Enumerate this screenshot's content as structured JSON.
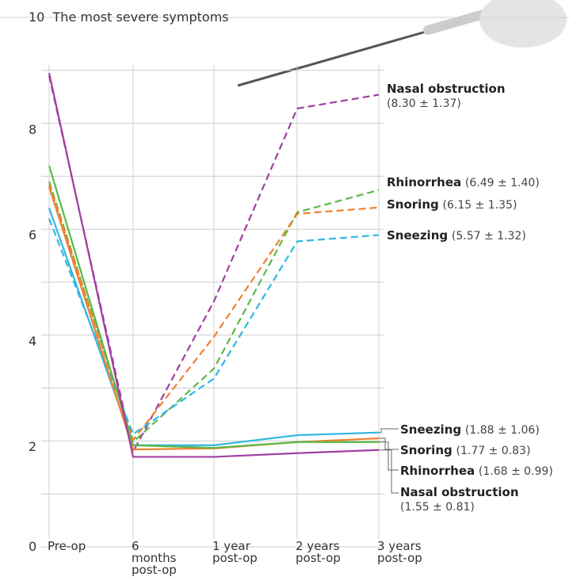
{
  "chart_data": {
    "type": "line",
    "title": "The most severe symptoms",
    "categories": [
      "Pre-op",
      "6 months post-op",
      "1 year post-op",
      "2 years post-op",
      "3 years post-op"
    ],
    "ylim": [
      0,
      10
    ],
    "yticks": [
      0,
      2,
      4,
      6,
      8,
      10
    ],
    "minor_yticks": [
      1,
      3,
      5,
      7,
      9
    ],
    "grid": true,
    "series": [
      {
        "name": "Nasal obstruction",
        "stat": "(8.30 ± 1.37)",
        "color": "#a040a0",
        "dash": true,
        "values": [
          8.9,
          1.8,
          4.64,
          8.28,
          8.54
        ]
      },
      {
        "name": "Rhinorrhea",
        "stat": "(6.49 ± 1.40)",
        "color": "#5cb848",
        "dash": true,
        "values": [
          6.9,
          1.98,
          3.37,
          6.32,
          6.74
        ]
      },
      {
        "name": "Snoring",
        "stat": "(6.15 ± 1.35)",
        "color": "#f08030",
        "dash": true,
        "values": [
          6.85,
          2.02,
          3.97,
          6.29,
          6.41
        ]
      },
      {
        "name": "Sneezing",
        "stat": "(5.57 ± 1.32)",
        "color": "#30b8e0",
        "dash": true,
        "values": [
          6.2,
          2.13,
          3.18,
          5.77,
          5.89
        ]
      },
      {
        "name": "Sneezing",
        "stat": "(1.88 ± 1.06)",
        "color": "#30b8e0",
        "dash": false,
        "values": [
          6.4,
          1.92,
          1.92,
          2.11,
          2.16
        ]
      },
      {
        "name": "Snoring",
        "stat": "(1.77 ± 0.83)",
        "color": "#f08030",
        "dash": false,
        "values": [
          6.8,
          1.84,
          1.86,
          1.98,
          2.05
        ]
      },
      {
        "name": "Rhinorrhea",
        "stat": "(1.68 ± 0.99)",
        "color": "#5cb848",
        "dash": false,
        "values": [
          7.2,
          1.92,
          1.87,
          1.98,
          1.98
        ]
      },
      {
        "name": "Nasal obstruction",
        "stat": "(1.55 ± 0.81)",
        "color": "#a040a0",
        "dash": false,
        "values": [
          8.95,
          1.7,
          1.7,
          1.77,
          1.83
        ]
      }
    ]
  }
}
